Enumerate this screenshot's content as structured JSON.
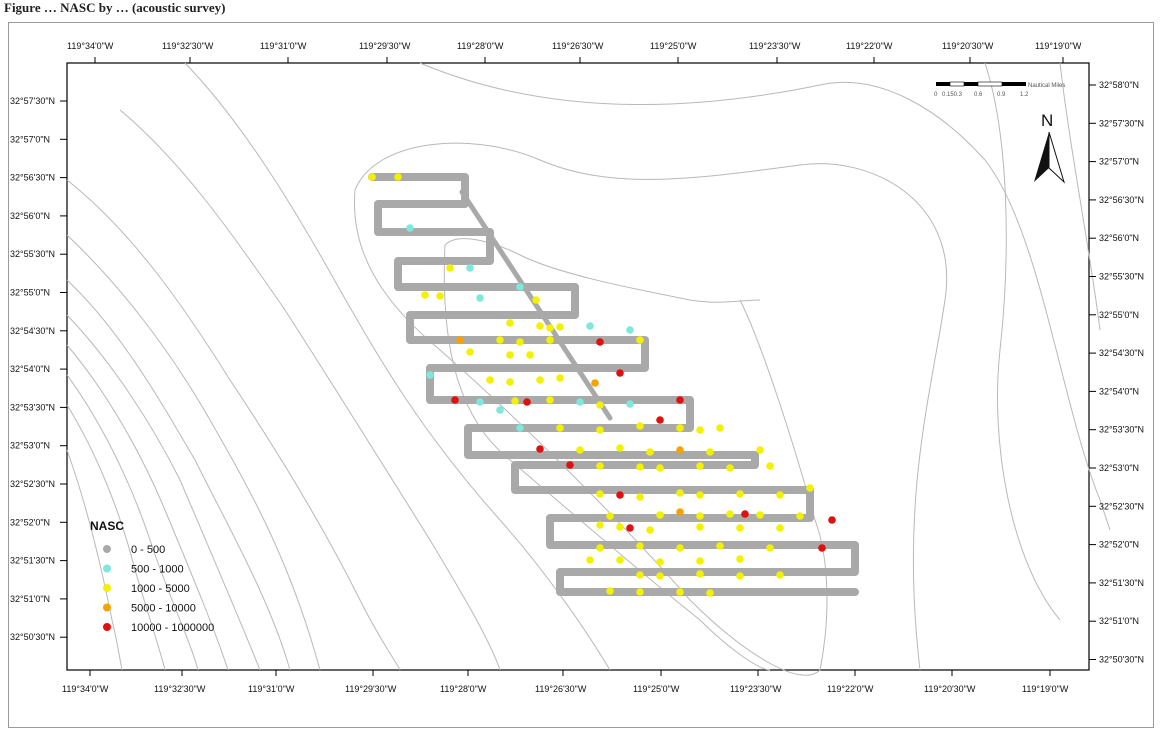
{
  "caption": "Figure … NASC by … (acoustic survey)",
  "axes": {
    "top_lon": [
      "119°34'0\"W",
      "119°32'30\"W",
      "119°31'0\"W",
      "119°29'30\"W",
      "119°28'0\"W",
      "119°26'30\"W",
      "119°25'0\"W",
      "119°23'30\"W",
      "119°22'0\"W",
      "119°20'30\"W",
      "119°19'0\"W"
    ],
    "bottom_lon": [
      "119°34'0\"W",
      "119°32'30\"W",
      "119°31'0\"W",
      "119°29'30\"W",
      "119°28'0\"W",
      "119°26'30\"W",
      "119°25'0\"W",
      "119°23'30\"W",
      "119°22'0\"W",
      "119°20'30\"W",
      "119°19'0\"W"
    ],
    "left_lat": [
      "32°57'30\"N",
      "32°57'0\"N",
      "32°56'30\"N",
      "32°56'0\"N",
      "32°55'30\"N",
      "32°55'0\"N",
      "32°54'30\"N",
      "32°54'0\"N",
      "32°53'30\"N",
      "32°53'0\"N",
      "32°52'30\"N",
      "32°52'0\"N",
      "32°51'30\"N",
      "32°51'0\"N",
      "32°50'30\"N"
    ],
    "right_lat": [
      "32°58'0\"N",
      "32°57'30\"N",
      "32°57'0\"N",
      "32°56'30\"N",
      "32°56'0\"N",
      "32°55'30\"N",
      "32°55'0\"N",
      "32°54'30\"N",
      "32°54'0\"N",
      "32°53'30\"N",
      "32°53'0\"N",
      "32°52'30\"N",
      "32°52'0\"N",
      "32°51'30\"N",
      "32°51'0\"N",
      "32°50'30\"N"
    ]
  },
  "legend": {
    "title": "NASC",
    "items": [
      {
        "label": "0 - 500",
        "color": "#a9a9a9"
      },
      {
        "label": "500 - 1000",
        "color": "#7ee8dc"
      },
      {
        "label": "1000 - 5000",
        "color": "#f2f200"
      },
      {
        "label": "5000 - 10000",
        "color": "#f5a300"
      },
      {
        "label": "10000 - 1000000",
        "color": "#e01010"
      }
    ]
  },
  "north_arrow": {
    "label": "N",
    "icon": "north-arrow-icon"
  },
  "scale_bar": {
    "unit": "Nautical Miles",
    "ticks": [
      "0",
      "0.150.3",
      "0.6",
      "0.9",
      "1.2"
    ]
  },
  "colors": {
    "contour": "#b5b5b5",
    "track": "#a9a9a9",
    "ink": "#111111"
  }
}
